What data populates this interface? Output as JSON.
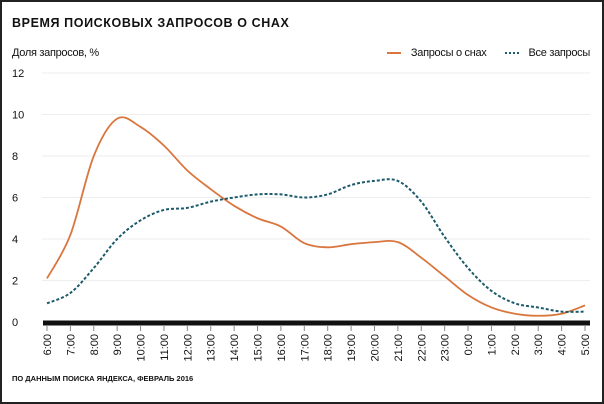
{
  "chart_data": {
    "type": "line",
    "title": "ВРЕМЯ ПОИСКОВЫХ ЗАПРОСОВ О СНАХ",
    "ylabel": "Доля запросов, %",
    "xlabel": "",
    "ylim": [
      0,
      12
    ],
    "yticks": [
      "0",
      "2",
      "4",
      "6",
      "8",
      "10",
      "12"
    ],
    "grid": true,
    "legend_position": "top-right",
    "x": [
      "6:00",
      "7:00",
      "8:00",
      "9:00",
      "10:00",
      "11:00",
      "12:00",
      "13:00",
      "14:00",
      "15:00",
      "16:00",
      "17:00",
      "18:00",
      "19:00",
      "20:00",
      "21:00",
      "22:00",
      "23:00",
      "0:00",
      "1:00",
      "2:00",
      "3:00",
      "4:00",
      "5:00"
    ],
    "series": [
      {
        "name": "Запросы о снах",
        "color": "#d9763e",
        "style": "solid",
        "values": [
          2.1,
          4.2,
          8.0,
          9.8,
          9.4,
          8.5,
          7.3,
          6.4,
          5.6,
          5.0,
          4.6,
          3.8,
          3.6,
          3.75,
          3.85,
          3.85,
          3.1,
          2.2,
          1.3,
          0.7,
          0.4,
          0.3,
          0.4,
          0.8
        ]
      },
      {
        "name": "Все запросы",
        "color": "#1d5a6c",
        "style": "dotted",
        "values": [
          0.9,
          1.4,
          2.6,
          4.0,
          4.9,
          5.4,
          5.5,
          5.8,
          6.0,
          6.15,
          6.15,
          6.0,
          6.15,
          6.6,
          6.8,
          6.8,
          5.8,
          4.1,
          2.6,
          1.5,
          0.9,
          0.7,
          0.5,
          0.5
        ]
      }
    ],
    "source": "ПО ДАННЫМ ПОИСКА ЯНДЕКСА, ФЕВРАЛЬ 2016"
  }
}
